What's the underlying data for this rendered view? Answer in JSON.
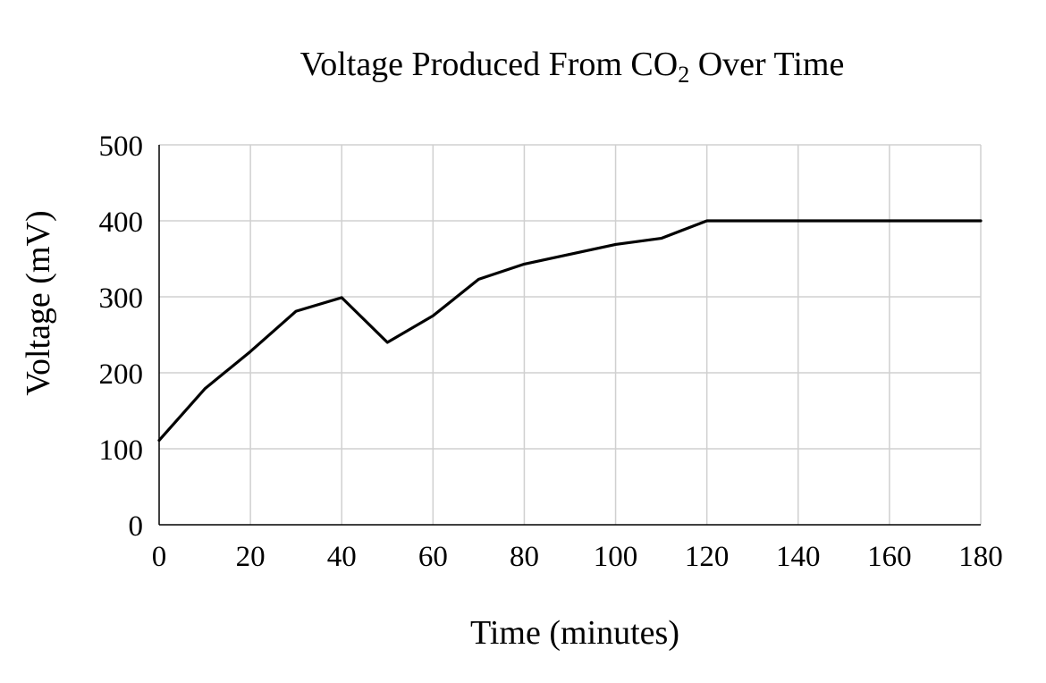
{
  "chart_data": {
    "type": "line",
    "title_main": "Voltage Produced From CO",
    "title_sub": "2",
    "title_end": " Over Time",
    "xlabel": "Time (minutes)",
    "ylabel": "Voltage (mV)",
    "xlim": [
      0,
      180
    ],
    "ylim": [
      0,
      500
    ],
    "xticks": [
      0,
      20,
      40,
      60,
      80,
      100,
      120,
      140,
      160,
      180
    ],
    "yticks": [
      0,
      100,
      200,
      300,
      400,
      500
    ],
    "grid": true,
    "legend": "none",
    "line_color": "#000000",
    "grid_color": "#d0d0d0",
    "series": [
      {
        "x": [
          0,
          10,
          20,
          30,
          40,
          50,
          60,
          70,
          80,
          90,
          100,
          110,
          120,
          130,
          140,
          150,
          160,
          170,
          180
        ],
        "y": [
          111,
          179,
          228,
          281,
          299,
          240,
          275,
          323,
          343,
          356,
          369,
          377,
          400,
          400,
          400,
          400,
          400,
          400,
          400
        ]
      }
    ]
  }
}
